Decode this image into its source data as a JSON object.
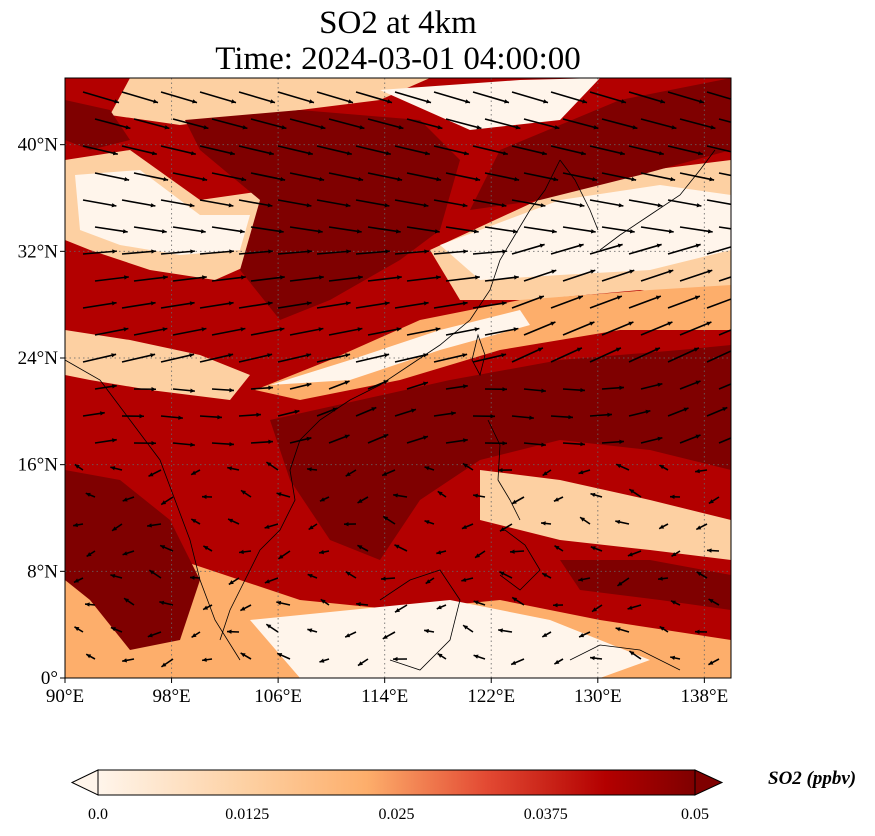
{
  "title": {
    "line1": "SO2 at 4km",
    "line2": "Time: 2024-03-01 04:00:00"
  },
  "map": {
    "lon_range": [
      90,
      140
    ],
    "lat_range": [
      0,
      45
    ],
    "lon_ticks": [
      {
        "value": 90,
        "label": "90°E"
      },
      {
        "value": 98,
        "label": "98°E"
      },
      {
        "value": 106,
        "label": "106°E"
      },
      {
        "value": 114,
        "label": "114°E"
      },
      {
        "value": 122,
        "label": "122°E"
      },
      {
        "value": 130,
        "label": "130°E"
      },
      {
        "value": 138,
        "label": "138°E"
      }
    ],
    "lat_ticks": [
      {
        "value": 0,
        "label": "0°"
      },
      {
        "value": 8,
        "label": "8°N"
      },
      {
        "value": 16,
        "label": "16°N"
      },
      {
        "value": 24,
        "label": "24°N"
      },
      {
        "value": 32,
        "label": "32°N"
      },
      {
        "value": 40,
        "label": "40°N"
      }
    ],
    "gridlines": true,
    "colormap": [
      "#fff5eb",
      "#fdd0a2",
      "#fdae6b",
      "#e34a33",
      "#b30000",
      "#7f0000"
    ]
  },
  "colorbar": {
    "label": "SO2 (ppbv)",
    "range": [
      0,
      0.05
    ],
    "extend": "both",
    "ticks": [
      {
        "value": 0.0,
        "label": "0.0"
      },
      {
        "value": 0.0125,
        "label": "0.0125"
      },
      {
        "value": 0.025,
        "label": "0.025"
      },
      {
        "value": 0.0375,
        "label": "0.0375"
      },
      {
        "value": 0.05,
        "label": "0.05"
      }
    ]
  }
}
